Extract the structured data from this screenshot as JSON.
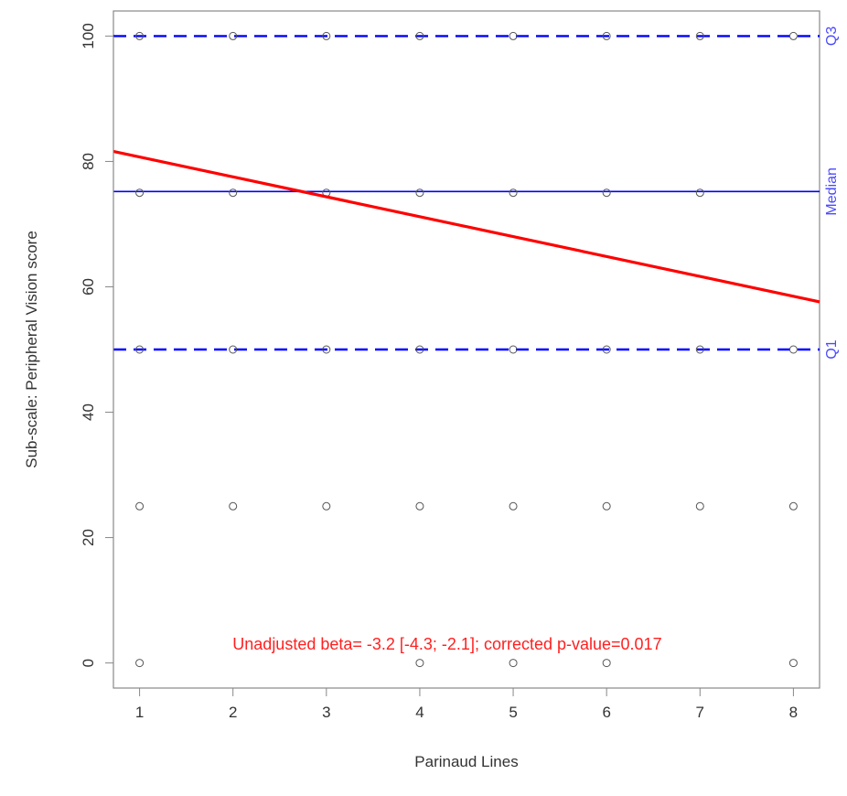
{
  "chart_data": {
    "type": "scatter",
    "title": "",
    "xlabel": "Parinaud Lines",
    "ylabel": "Sub-scale: Peripheral Vision score",
    "xlim": [
      0.72,
      8.28
    ],
    "ylim": [
      -4,
      104
    ],
    "x_ticks": [
      1,
      2,
      3,
      4,
      5,
      6,
      7,
      8
    ],
    "y_ticks": [
      0,
      20,
      40,
      60,
      80,
      100
    ],
    "grid": false,
    "points": [
      {
        "x": 1,
        "y": 100
      },
      {
        "x": 2,
        "y": 100
      },
      {
        "x": 3,
        "y": 100
      },
      {
        "x": 4,
        "y": 100
      },
      {
        "x": 5,
        "y": 100
      },
      {
        "x": 6,
        "y": 100
      },
      {
        "x": 7,
        "y": 100
      },
      {
        "x": 8,
        "y": 100
      },
      {
        "x": 1,
        "y": 75
      },
      {
        "x": 2,
        "y": 75
      },
      {
        "x": 3,
        "y": 75
      },
      {
        "x": 4,
        "y": 75
      },
      {
        "x": 5,
        "y": 75
      },
      {
        "x": 6,
        "y": 75
      },
      {
        "x": 7,
        "y": 75
      },
      {
        "x": 1,
        "y": 50
      },
      {
        "x": 2,
        "y": 50
      },
      {
        "x": 3,
        "y": 50
      },
      {
        "x": 4,
        "y": 50
      },
      {
        "x": 5,
        "y": 50
      },
      {
        "x": 6,
        "y": 50
      },
      {
        "x": 7,
        "y": 50
      },
      {
        "x": 8,
        "y": 50
      },
      {
        "x": 1,
        "y": 25
      },
      {
        "x": 2,
        "y": 25
      },
      {
        "x": 3,
        "y": 25
      },
      {
        "x": 4,
        "y": 25
      },
      {
        "x": 5,
        "y": 25
      },
      {
        "x": 6,
        "y": 25
      },
      {
        "x": 7,
        "y": 25
      },
      {
        "x": 8,
        "y": 25
      },
      {
        "x": 1,
        "y": 0
      },
      {
        "x": 4,
        "y": 0
      },
      {
        "x": 5,
        "y": 0
      },
      {
        "x": 6,
        "y": 0
      },
      {
        "x": 8,
        "y": 0
      }
    ],
    "regression_line": {
      "x": [
        0.72,
        8.28
      ],
      "y": [
        81.6,
        57.6
      ],
      "color": "#ff0000"
    },
    "reference_lines": [
      {
        "label": "Q3",
        "y": 100,
        "style": "dashed",
        "color": "#0000ff"
      },
      {
        "label": "Median",
        "y": 75.2,
        "style": "solid",
        "color": "#0000ff"
      },
      {
        "label": "Q1",
        "y": 50,
        "style": "dashed",
        "color": "#0000ff"
      }
    ],
    "annotation": {
      "text": "Unadjusted beta= -3.2 [-4.3; -2.1]; corrected p-value=0.017",
      "x": 4.0,
      "y": 3,
      "color": "#ff2020"
    },
    "label_color": "#4a4aff",
    "point_color": "#555555"
  }
}
